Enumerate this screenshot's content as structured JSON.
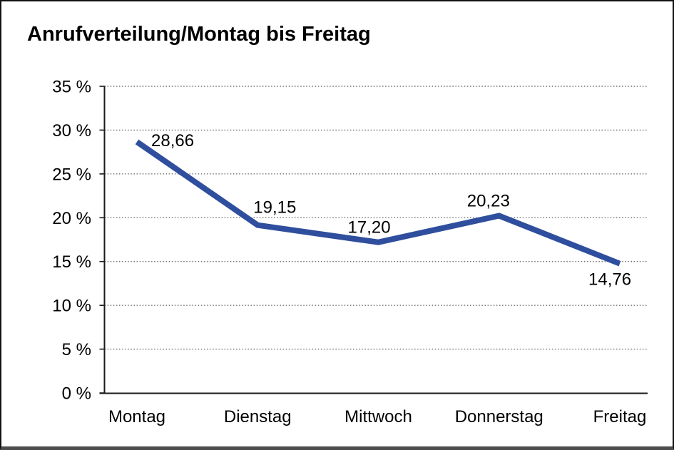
{
  "chart_data": {
    "type": "line",
    "title": "Anrufverteilung/Montag bis Freitag",
    "categories": [
      "Montag",
      "Dienstag",
      "Mittwoch",
      "Donnerstag",
      "Freitag"
    ],
    "values": [
      28.66,
      19.15,
      17.2,
      20.23,
      14.76
    ],
    "value_labels": [
      "28,66",
      "19,15",
      "17,20",
      "20,23",
      "14,76"
    ],
    "xlabel": "",
    "ylabel": "",
    "ylim": [
      0,
      35
    ],
    "ytick_step": 5,
    "ytick_labels": [
      "0 %",
      "5 %",
      "10 %",
      "15 %",
      "20 %",
      "25 %",
      "30 %",
      "35 %"
    ],
    "grid": "horizontal dotted",
    "legend": "none",
    "colors": {
      "line": "#2F4E9D",
      "grid": "#6E6E6E",
      "axis": "#1A1A1A",
      "text": "#000000",
      "frame_border": "#121212",
      "frame_bottom": "#4E4E4E",
      "background": "#FFFFFF"
    }
  }
}
